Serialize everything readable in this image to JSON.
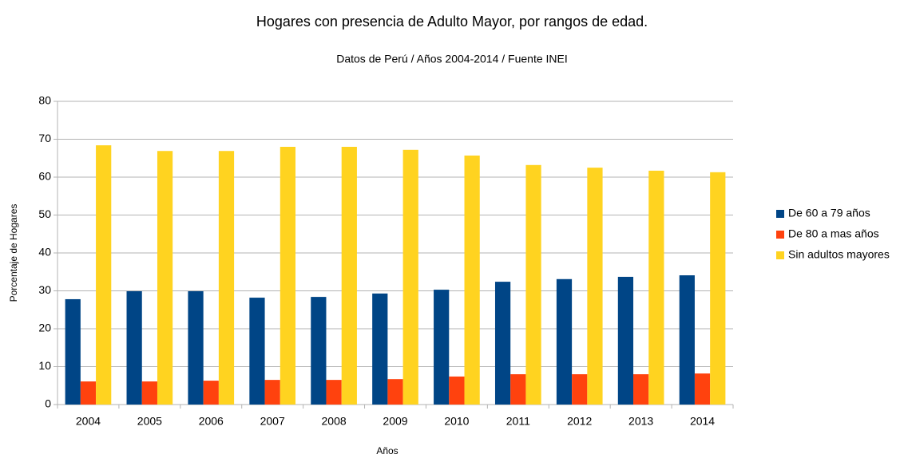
{
  "chart_data": {
    "type": "bar",
    "title": "Hogares con presencia de Adulto Mayor, por rangos de edad.",
    "subtitle": "Datos de Perú / Años 2004-2014 / Fuente INEI",
    "xlabel": "Años",
    "ylabel": "Porcentaje de Hogares",
    "categories": [
      "2004",
      "2005",
      "2006",
      "2007",
      "2008",
      "2009",
      "2010",
      "2011",
      "2012",
      "2013",
      "2014"
    ],
    "series": [
      {
        "name": "De 60 a 79 años",
        "color": "#004586",
        "values": [
          27.8,
          29.9,
          29.9,
          28.2,
          28.4,
          29.3,
          30.3,
          32.4,
          33.1,
          33.7,
          34.1
        ]
      },
      {
        "name": "De 80 a mas años",
        "color": "#ff420e",
        "values": [
          6.1,
          6.1,
          6.3,
          6.5,
          6.5,
          6.7,
          7.4,
          8.0,
          8.0,
          8.0,
          8.2
        ]
      },
      {
        "name": "Sin adultos mayores",
        "color": "#ffd320",
        "values": [
          68.4,
          66.9,
          66.9,
          68.0,
          68.0,
          67.2,
          65.7,
          63.2,
          62.5,
          61.7,
          61.3
        ]
      }
    ],
    "ylim": [
      0,
      80
    ],
    "yticks": [
      0,
      10,
      20,
      30,
      40,
      50,
      60,
      70,
      80
    ],
    "grid": true,
    "legend": "right"
  }
}
